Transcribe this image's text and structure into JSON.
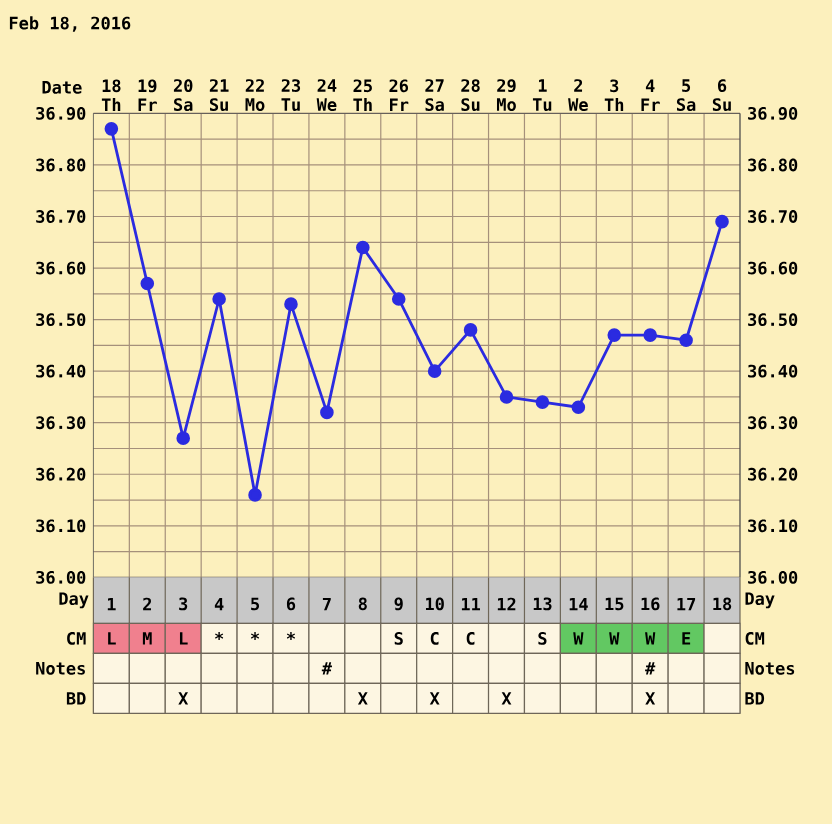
{
  "chart_data": [
    {
      "type": "line",
      "title": "Feb 18, 2016",
      "xlabel": "Date",
      "categories": [
        "18 Th",
        "19 Fr",
        "20 Sa",
        "21 Su",
        "22 Mo",
        "23 Tu",
        "24 We",
        "25 Th",
        "26 Fr",
        "27 Sa",
        "28 Su",
        "29 Mo",
        "1 Tu",
        "2 We",
        "3 Th",
        "4 Fr",
        "5 Sa",
        "6 Su"
      ],
      "series": [
        {
          "color": "#2b2be0",
          "values": [
            36.87,
            36.57,
            36.27,
            36.54,
            36.16,
            36.53,
            36.32,
            36.64,
            36.54,
            36.4,
            36.48,
            36.35,
            36.34,
            36.33,
            36.47,
            36.47,
            36.46,
            36.69
          ]
        }
      ],
      "ylim": [
        36.0,
        36.9
      ],
      "yticks": [
        {
          "value": 36.0,
          "label": "36.00"
        },
        {
          "value": 36.1,
          "label": "36.10"
        },
        {
          "value": 36.2,
          "label": "36.20"
        },
        {
          "value": 36.3,
          "label": "36.30"
        },
        {
          "value": 36.4,
          "label": "36.40"
        },
        {
          "value": 36.5,
          "label": "36.50"
        },
        {
          "value": 36.6,
          "label": "36.60"
        },
        {
          "value": 36.7,
          "label": "36.70"
        },
        {
          "value": 36.8,
          "label": "36.80"
        },
        {
          "value": 36.9,
          "label": "36.90"
        }
      ],
      "y2lim": [
        36.0,
        36.9
      ],
      "y2ticks": [
        {
          "value": 36.0,
          "label": "36.00"
        },
        {
          "value": 36.1,
          "label": "36.10"
        },
        {
          "value": 36.2,
          "label": "36.20"
        },
        {
          "value": 36.3,
          "label": "36.30"
        },
        {
          "value": 36.4,
          "label": "36.40"
        },
        {
          "value": 36.5,
          "label": "36.50"
        },
        {
          "value": 36.6,
          "label": "36.60"
        },
        {
          "value": 36.7,
          "label": "36.70"
        },
        {
          "value": 36.8,
          "label": "36.80"
        },
        {
          "value": 36.9,
          "label": "36.90"
        }
      ],
      "grid": true,
      "marker": "circle",
      "line_style": "solid"
    },
    {
      "type": "heatmap",
      "xlabel": "Day",
      "categories": [
        "1",
        "2",
        "3",
        "4",
        "5",
        "6",
        "7",
        "8",
        "9",
        "10",
        "11",
        "12",
        "13",
        "14",
        "15",
        "16",
        "17",
        "18"
      ],
      "y_categories": [
        "CM",
        "Notes",
        "BD"
      ],
      "y2_categories": [
        "CM",
        "Notes",
        "BD"
      ],
      "cells": [
        [
          null,
          null,
          null,
          null,
          null,
          null,
          null,
          null,
          null,
          null,
          null,
          null,
          null,
          null,
          null,
          null,
          null,
          null
        ],
        [
          null,
          null,
          null,
          null,
          null,
          null,
          null,
          null,
          null,
          null,
          null,
          null,
          null,
          null,
          null,
          null,
          null,
          null
        ],
        [
          null,
          null,
          null,
          null,
          null,
          null,
          null,
          null,
          null,
          null,
          null,
          null,
          null,
          null,
          null,
          null,
          null,
          null
        ]
      ],
      "cell_labels": [
        [
          "L",
          "M",
          "L",
          "*",
          "*",
          "*",
          null,
          null,
          "S",
          "C",
          "C",
          null,
          "S",
          "W",
          "W",
          "W",
          "E",
          null
        ],
        [
          null,
          null,
          null,
          null,
          null,
          null,
          "#",
          null,
          null,
          null,
          null,
          null,
          null,
          null,
          null,
          "#",
          null,
          null
        ],
        [
          null,
          null,
          "X",
          null,
          null,
          null,
          null,
          "X",
          null,
          "X",
          null,
          "X",
          null,
          null,
          null,
          "X",
          null,
          null
        ]
      ],
      "colors": [
        [
          "#f0808e",
          "#f0808e",
          "#f0808e",
          null,
          null,
          null,
          null,
          null,
          null,
          null,
          null,
          null,
          null,
          "#62c862",
          "#62c862",
          "#62c862",
          "#62c862",
          null
        ],
        [
          null,
          null,
          null,
          null,
          null,
          null,
          null,
          null,
          null,
          null,
          null,
          null,
          null,
          null,
          null,
          null,
          null,
          null
        ],
        [
          null,
          null,
          null,
          null,
          null,
          null,
          null,
          null,
          null,
          null,
          null,
          null,
          null,
          null,
          null,
          null,
          null,
          null
        ]
      ]
    }
  ]
}
